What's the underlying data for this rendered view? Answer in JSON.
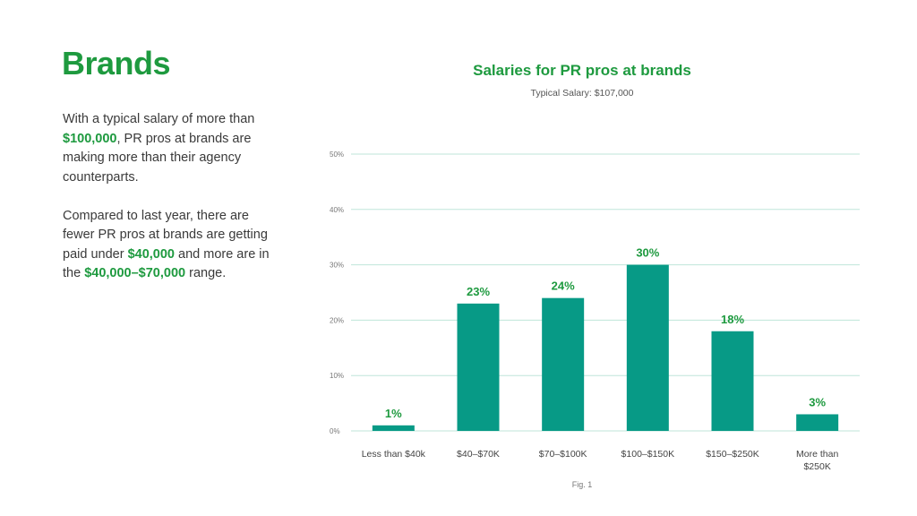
{
  "page": {
    "title": "Brands",
    "paragraph1": {
      "before": "With a typical salary of more than ",
      "highlight": "$100,000",
      "after": ", PR pros at brands are making more than their agency counterparts."
    },
    "paragraph2": {
      "part1": "Compared to last year, there are fewer PR pros at brands are getting paid under ",
      "highlight1": "$40,000",
      "part2": " and more are in the ",
      "highlight2": "$40,000–$70,000",
      "part3": " range."
    },
    "figure_label": "Fig. 1"
  },
  "colors": {
    "brand_green": "#1e9a3f",
    "bar_teal": "#079a86",
    "grid": "#bfe6da"
  },
  "chart_data": {
    "type": "bar",
    "title": "Salaries for PR pros at brands",
    "subtitle": "Typical Salary: $107,000",
    "categories": [
      "Less than $40k",
      "$40–$70K",
      "$70–$100K",
      "$100–$150K",
      "$150–$250K",
      "More than $250K"
    ],
    "category_lines": [
      [
        "Less than $40k"
      ],
      [
        "$40–$70K"
      ],
      [
        "$70–$100K"
      ],
      [
        "$100–$150K"
      ],
      [
        "$150–$250K"
      ],
      [
        "More than",
        "$250K"
      ]
    ],
    "values": [
      1,
      23,
      24,
      30,
      18,
      3
    ],
    "value_labels": [
      "1%",
      "23%",
      "24%",
      "30%",
      "18%",
      "3%"
    ],
    "yticks": [
      0,
      10,
      20,
      30,
      40,
      50
    ],
    "ytick_labels": [
      "0%",
      "10%",
      "20%",
      "30%",
      "40%",
      "50%"
    ],
    "ylim": [
      0,
      50
    ],
    "xlabel": "",
    "ylabel": "",
    "grid": true
  }
}
